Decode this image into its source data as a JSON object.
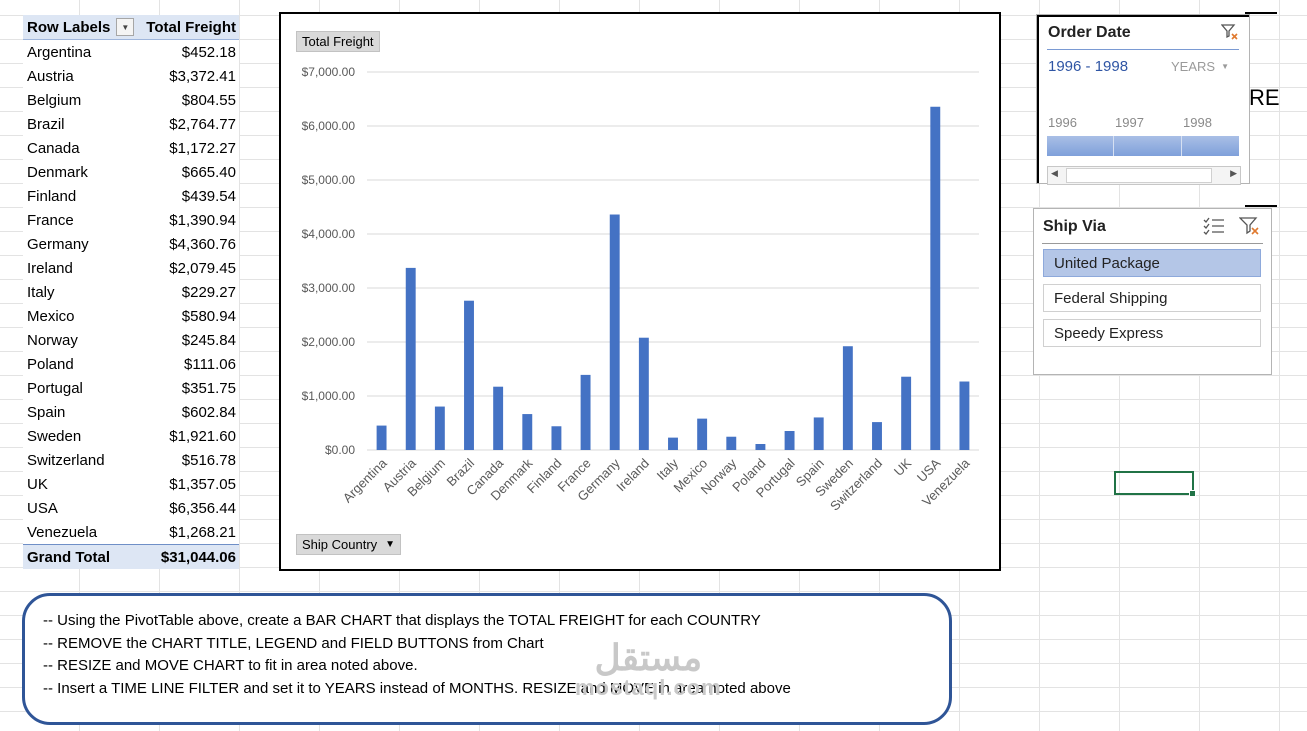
{
  "pivot": {
    "header": {
      "row_labels": "Row Labels",
      "value_label": "Total Freight"
    },
    "rows": [
      {
        "label": "Argentina",
        "value": "$452.18"
      },
      {
        "label": "Austria",
        "value": "$3,372.41"
      },
      {
        "label": "Belgium",
        "value": "$804.55"
      },
      {
        "label": "Brazil",
        "value": "$2,764.77"
      },
      {
        "label": "Canada",
        "value": "$1,172.27"
      },
      {
        "label": "Denmark",
        "value": "$665.40"
      },
      {
        "label": "Finland",
        "value": "$439.54"
      },
      {
        "label": "France",
        "value": "$1,390.94"
      },
      {
        "label": "Germany",
        "value": "$4,360.76"
      },
      {
        "label": "Ireland",
        "value": "$2,079.45"
      },
      {
        "label": "Italy",
        "value": "$229.27"
      },
      {
        "label": "Mexico",
        "value": "$580.94"
      },
      {
        "label": "Norway",
        "value": "$245.84"
      },
      {
        "label": "Poland",
        "value": "$111.06"
      },
      {
        "label": "Portugal",
        "value": "$351.75"
      },
      {
        "label": "Spain",
        "value": "$602.84"
      },
      {
        "label": "Sweden",
        "value": "$1,921.60"
      },
      {
        "label": "Switzerland",
        "value": "$516.78"
      },
      {
        "label": "UK",
        "value": "$1,357.05"
      },
      {
        "label": "USA",
        "value": "$6,356.44"
      },
      {
        "label": "Venezuela",
        "value": "$1,268.21"
      }
    ],
    "grand_total": {
      "label": "Grand Total",
      "value": "$31,044.06"
    }
  },
  "chart": {
    "value_field_button": "Total Freight",
    "axis_field_button": "Ship Country"
  },
  "chart_data": {
    "type": "bar",
    "categories": [
      "Argentina",
      "Austria",
      "Belgium",
      "Brazil",
      "Canada",
      "Denmark",
      "Finland",
      "France",
      "Germany",
      "Ireland",
      "Italy",
      "Mexico",
      "Norway",
      "Poland",
      "Portugal",
      "Spain",
      "Sweden",
      "Switzerland",
      "UK",
      "USA",
      "Venezuela"
    ],
    "series": [
      {
        "values": [
          452.18,
          3372.41,
          804.55,
          2764.77,
          1172.27,
          665.4,
          439.54,
          1390.94,
          4360.76,
          2079.45,
          229.27,
          580.94,
          245.84,
          111.06,
          351.75,
          602.84,
          1921.6,
          516.78,
          1357.05,
          6356.44,
          1268.21
        ]
      }
    ],
    "ylim": [
      0,
      7000
    ],
    "yticks": [
      "$0.00",
      "$1,000.00",
      "$2,000.00",
      "$3,000.00",
      "$4,000.00",
      "$5,000.00",
      "$6,000.00",
      "$7,000.00"
    ],
    "grid": true,
    "bar_color": "#4472c4"
  },
  "timeline": {
    "title": "Order Date",
    "range": "1996 - 1998",
    "level": "YEARS",
    "years": [
      "1996",
      "1997",
      "1998"
    ],
    "clear_icon": "filter-clear-icon"
  },
  "clipped_text": "RE",
  "slicer": {
    "title": "Ship Via",
    "items": [
      {
        "label": "United Package",
        "selected": true
      },
      {
        "label": "Federal Shipping",
        "selected": false
      },
      {
        "label": "Speedy Express",
        "selected": false
      }
    ],
    "multiselect_icon": "multi-select-icon",
    "clear_icon": "filter-clear-icon"
  },
  "notes": {
    "lines": [
      "-- Using the PivotTable above, create a BAR CHART that displays the TOTAL FREIGHT for each COUNTRY",
      "-- REMOVE the CHART TITLE, LEGEND and FIELD BUTTONS from Chart",
      "-- RESIZE and MOVE CHART to fit in area noted above.",
      "-- Insert a TIME LINE FILTER and set it to YEARS instead of MONTHS. RESIZE and MOVE in area noted above"
    ]
  },
  "watermark": {
    "arabic": "مستقل",
    "latin": "mostaql.com"
  }
}
